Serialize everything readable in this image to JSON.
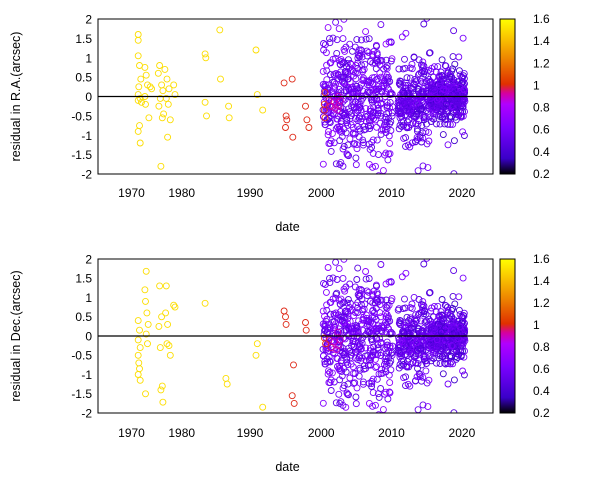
{
  "chart_data": [
    {
      "type": "scatter",
      "xlabel": "date",
      "ylabel": "residual in R.A.(arcsec)",
      "xlim": [
        1965,
        2024
      ],
      "ylim": [
        -2,
        2
      ],
      "xticks": [
        1970,
        1980,
        1990,
        2000,
        2010,
        2020
      ],
      "yticks": [
        -2,
        -1.5,
        -1,
        -0.5,
        0,
        0.5,
        1,
        1.5,
        2
      ],
      "ytick_labels": [
        "-2",
        "-1.5",
        "-1",
        "-0.5",
        "0",
        "0.5",
        "1",
        "1.5",
        "2"
      ],
      "colorbar": {
        "min": 0.2,
        "max": 1.6,
        "ticks": [
          "1.6",
          "1.4",
          "1.2",
          "1",
          "0.8",
          "0.6",
          "0.4",
          "0.2"
        ]
      },
      "marker": "open-circle",
      "zero_line": true,
      "points": [
        [
          1971.0,
          1.6,
          1.5
        ],
        [
          1971.0,
          1.45,
          1.5
        ],
        [
          1971.0,
          1.05,
          1.5
        ],
        [
          1971.2,
          0.8,
          1.5
        ],
        [
          1971.4,
          0.45,
          1.5
        ],
        [
          1971.1,
          0.25,
          1.5
        ],
        [
          1971.0,
          0.05,
          1.5
        ],
        [
          1971.3,
          -0.05,
          1.5
        ],
        [
          1971.0,
          -0.1,
          1.5
        ],
        [
          1971.5,
          -0.15,
          1.5
        ],
        [
          1971.2,
          -0.75,
          1.5
        ],
        [
          1971.0,
          -0.9,
          1.5
        ],
        [
          1971.3,
          -1.2,
          1.5
        ],
        [
          1972.0,
          0.75,
          1.5
        ],
        [
          1972.2,
          0.55,
          1.5
        ],
        [
          1972.4,
          0.3,
          1.5
        ],
        [
          1972.0,
          0.0,
          1.5
        ],
        [
          1972.1,
          -0.2,
          1.5
        ],
        [
          1972.8,
          0.25,
          1.5
        ],
        [
          1973.0,
          0.2,
          1.5
        ],
        [
          1972.6,
          -0.55,
          1.5
        ],
        [
          1974.2,
          0.8,
          1.5
        ],
        [
          1974.0,
          0.6,
          1.5
        ],
        [
          1974.5,
          0.3,
          1.5
        ],
        [
          1974.7,
          0.15,
          1.5
        ],
        [
          1974.3,
          -0.05,
          1.5
        ],
        [
          1974.1,
          -0.25,
          1.5
        ],
        [
          1974.8,
          -0.45,
          1.5
        ],
        [
          1974.6,
          -0.55,
          1.5
        ],
        [
          1974.4,
          -1.8,
          1.5
        ],
        [
          1975.0,
          0.7,
          1.5
        ],
        [
          1975.3,
          0.45,
          1.5
        ],
        [
          1975.6,
          0.2,
          1.5
        ],
        [
          1975.2,
          -0.05,
          1.5
        ],
        [
          1975.5,
          -0.2,
          1.5
        ],
        [
          1975.8,
          -0.6,
          1.5
        ],
        [
          1975.4,
          -1.05,
          1.5
        ],
        [
          1976.3,
          0.3,
          1.5
        ],
        [
          1976.5,
          0.05,
          1.5
        ],
        [
          1981.0,
          1.1,
          1.5
        ],
        [
          1981.1,
          1.0,
          1.5
        ],
        [
          1981.0,
          -0.15,
          1.5
        ],
        [
          1981.2,
          -0.5,
          1.5
        ],
        [
          1983.2,
          1.72,
          1.5
        ],
        [
          1983.3,
          0.45,
          1.5
        ],
        [
          1984.5,
          -0.25,
          1.5
        ],
        [
          1984.6,
          -0.55,
          1.5
        ],
        [
          1988.6,
          1.2,
          1.5
        ],
        [
          1988.8,
          0.05,
          1.5
        ],
        [
          1989.6,
          -0.35,
          1.5
        ],
        [
          1992.8,
          0.35,
          1.0
        ],
        [
          1993.1,
          -0.5,
          1.0
        ],
        [
          1993.2,
          -0.6,
          1.0
        ],
        [
          1993.0,
          -0.8,
          1.0
        ],
        [
          1994.0,
          0.45,
          1.0
        ],
        [
          1994.1,
          -1.05,
          1.0
        ],
        [
          1996.0,
          -0.25,
          1.0
        ],
        [
          1996.2,
          -0.6,
          1.0
        ],
        [
          1996.5,
          -0.8,
          1.0
        ],
        [
          1998.9,
          0.1,
          1.0
        ],
        [
          1998.8,
          -0.2,
          1.0
        ],
        [
          1998.8,
          -0.35,
          1.0
        ],
        [
          1998.9,
          -0.55,
          1.0
        ],
        [
          1999.5,
          -0.1,
          0.95
        ],
        [
          1999.8,
          -0.25,
          0.95
        ],
        [
          2000.2,
          -0.15,
          0.9
        ],
        [
          2000.4,
          -0.3,
          0.9
        ],
        [
          2000.6,
          -0.2,
          0.9
        ],
        [
          2000.8,
          -0.35,
          0.9
        ],
        [
          2001.0,
          -0.25,
          0.9
        ],
        [
          2001.2,
          -0.1,
          0.9
        ],
        [
          2000.9,
          0.0,
          0.9
        ]
      ]
    },
    {
      "type": "scatter",
      "xlabel": "date",
      "ylabel": "residual in Dec.(arcsec)",
      "xlim": [
        1965,
        2024
      ],
      "ylim": [
        -2,
        2
      ],
      "xticks": [
        1970,
        1980,
        1990,
        2000,
        2010,
        2020
      ],
      "yticks": [
        -2,
        -1.5,
        -1,
        -0.5,
        0,
        0.5,
        1,
        1.5,
        2
      ],
      "ytick_labels": [
        "-2",
        "-1.5",
        "-1",
        "-0.5",
        "0",
        "0.5",
        "1",
        "1.5",
        "2"
      ],
      "colorbar": {
        "min": 0.2,
        "max": 1.6,
        "ticks": [
          "1.6",
          "1.4",
          "1.2",
          "1",
          "0.8",
          "0.6",
          "0.4",
          "0.2"
        ]
      },
      "marker": "open-circle",
      "zero_line": true,
      "points": [
        [
          1971.0,
          0.4,
          1.5
        ],
        [
          1971.2,
          0.15,
          1.5
        ],
        [
          1971.0,
          -0.1,
          1.5
        ],
        [
          1971.3,
          -0.3,
          1.5
        ],
        [
          1971.0,
          -0.5,
          1.5
        ],
        [
          1971.1,
          -0.7,
          1.5
        ],
        [
          1971.2,
          -0.85,
          1.5
        ],
        [
          1971.0,
          -1.0,
          1.5
        ],
        [
          1971.3,
          -1.15,
          1.5
        ],
        [
          1972.2,
          1.68,
          1.5
        ],
        [
          1972.0,
          1.2,
          1.5
        ],
        [
          1972.1,
          0.9,
          1.5
        ],
        [
          1972.3,
          0.6,
          1.5
        ],
        [
          1972.5,
          0.3,
          1.5
        ],
        [
          1972.2,
          0.05,
          1.5
        ],
        [
          1972.4,
          -0.2,
          1.5
        ],
        [
          1972.1,
          -1.5,
          1.5
        ],
        [
          1974.2,
          1.3,
          1.5
        ],
        [
          1974.5,
          0.5,
          1.5
        ],
        [
          1974.1,
          0.25,
          1.5
        ],
        [
          1974.3,
          -0.3,
          1.5
        ],
        [
          1974.6,
          -1.3,
          1.5
        ],
        [
          1974.4,
          -1.4,
          1.5
        ],
        [
          1974.7,
          -1.72,
          1.5
        ],
        [
          1975.2,
          1.3,
          1.5
        ],
        [
          1975.1,
          0.6,
          1.5
        ],
        [
          1975.4,
          0.3,
          1.5
        ],
        [
          1975.3,
          -0.2,
          1.5
        ],
        [
          1975.6,
          -0.25,
          1.5
        ],
        [
          1975.8,
          -0.5,
          1.5
        ],
        [
          1976.3,
          0.8,
          1.5
        ],
        [
          1976.5,
          0.75,
          1.5
        ],
        [
          1981.0,
          0.85,
          1.5
        ],
        [
          1984.1,
          -1.1,
          1.5
        ],
        [
          1984.3,
          -1.25,
          1.5
        ],
        [
          1988.8,
          -0.2,
          1.5
        ],
        [
          1988.6,
          -0.5,
          1.5
        ],
        [
          1989.6,
          -1.85,
          1.5
        ],
        [
          1992.8,
          0.65,
          1.0
        ],
        [
          1993.0,
          0.5,
          1.0
        ],
        [
          1993.1,
          0.3,
          1.0
        ],
        [
          1994.2,
          -0.75,
          1.0
        ],
        [
          1994.0,
          -1.55,
          1.0
        ],
        [
          1994.3,
          -1.75,
          1.0
        ],
        [
          1996.0,
          0.35,
          1.0
        ],
        [
          1996.1,
          0.15,
          1.0
        ],
        [
          1998.8,
          -0.05,
          1.0
        ],
        [
          1999.0,
          -0.2,
          1.0
        ],
        [
          1999.5,
          -0.1,
          0.95
        ],
        [
          1999.8,
          -0.3,
          0.95
        ],
        [
          2000.3,
          -0.15,
          0.9
        ],
        [
          2000.6,
          -0.35,
          0.9
        ],
        [
          2000.9,
          -0.25,
          0.9
        ],
        [
          2001.2,
          -0.1,
          0.9
        ],
        [
          2000.8,
          0.1,
          0.9
        ]
      ]
    }
  ],
  "dense_clusters": [
    {
      "comment": "cluster blocks of purple residuals",
      "blocks": [
        {
          "x": [
            1998.6,
            2009.0
          ],
          "mean": 0.0,
          "sd": 0.7,
          "n": 480,
          "color": [
            0.45,
            0.7
          ]
        },
        {
          "x": [
            2009.8,
            2014.5
          ],
          "mean": -0.1,
          "sd": 0.45,
          "n": 260,
          "color": [
            0.4,
            0.65
          ]
        },
        {
          "x": [
            2014.5,
            2019.8
          ],
          "mean": 0.0,
          "sd": 0.3,
          "n": 420,
          "color": [
            0.35,
            0.65
          ]
        }
      ]
    }
  ]
}
